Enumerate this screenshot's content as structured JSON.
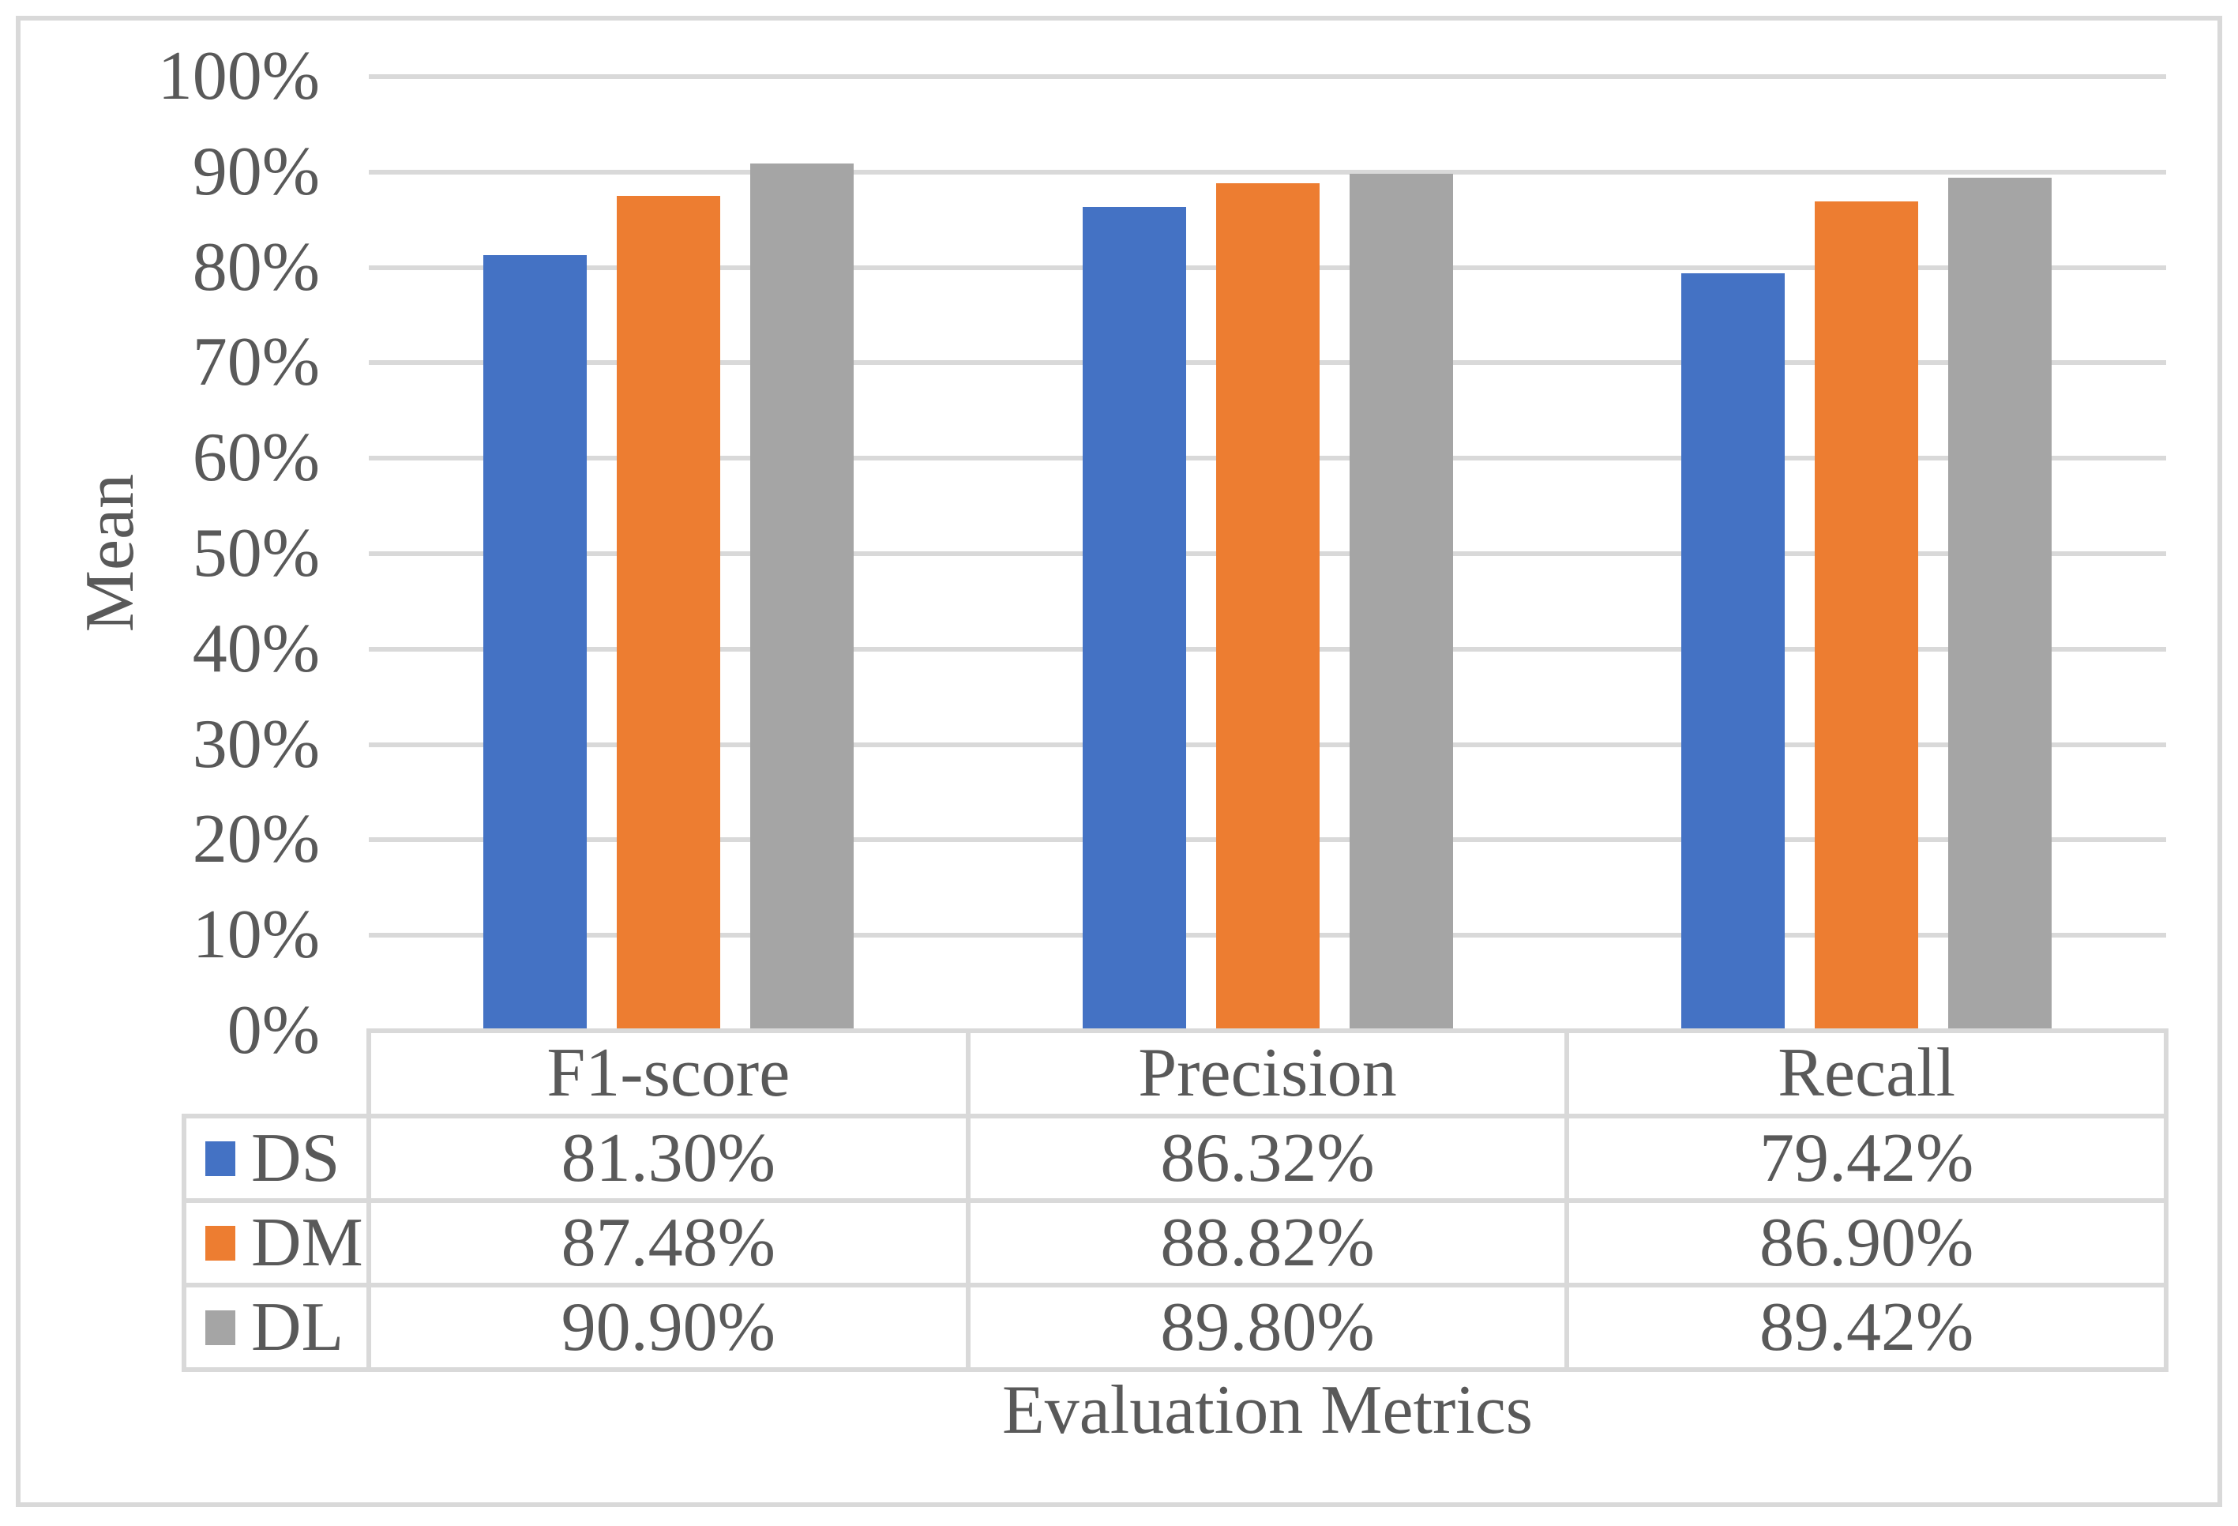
{
  "chart_data": {
    "type": "bar",
    "title": "",
    "xlabel": "Evaluation Metrics",
    "ylabel": "Mean",
    "categories": [
      "F1-score",
      "Precision",
      "Recall"
    ],
    "series": [
      {
        "name": "DS",
        "color": "#4472C4",
        "values": [
          81.3,
          86.32,
          79.42
        ],
        "display": [
          "81.30%",
          "86.32%",
          "79.42%"
        ]
      },
      {
        "name": "DM",
        "color": "#ED7D31",
        "values": [
          87.48,
          88.82,
          86.9
        ],
        "display": [
          "87.48%",
          "88.82%",
          "86.90%"
        ]
      },
      {
        "name": "DL",
        "color": "#A5A5A5",
        "values": [
          90.9,
          89.8,
          89.42
        ],
        "display": [
          "90.90%",
          "89.80%",
          "89.42%"
        ]
      }
    ],
    "ylim": [
      0,
      100
    ],
    "ytick_step": 10,
    "ytick_labels": [
      "0%",
      "10%",
      "20%",
      "30%",
      "40%",
      "50%",
      "60%",
      "70%",
      "80%",
      "90%",
      "100%"
    ],
    "grid": true,
    "legend_position": "data-table-left",
    "data_table_shown": true
  },
  "colors": {
    "gridline": "#D9D9D9",
    "frame_border": "#D9D9D9",
    "text": "#595959",
    "background": "#FFFFFF"
  }
}
